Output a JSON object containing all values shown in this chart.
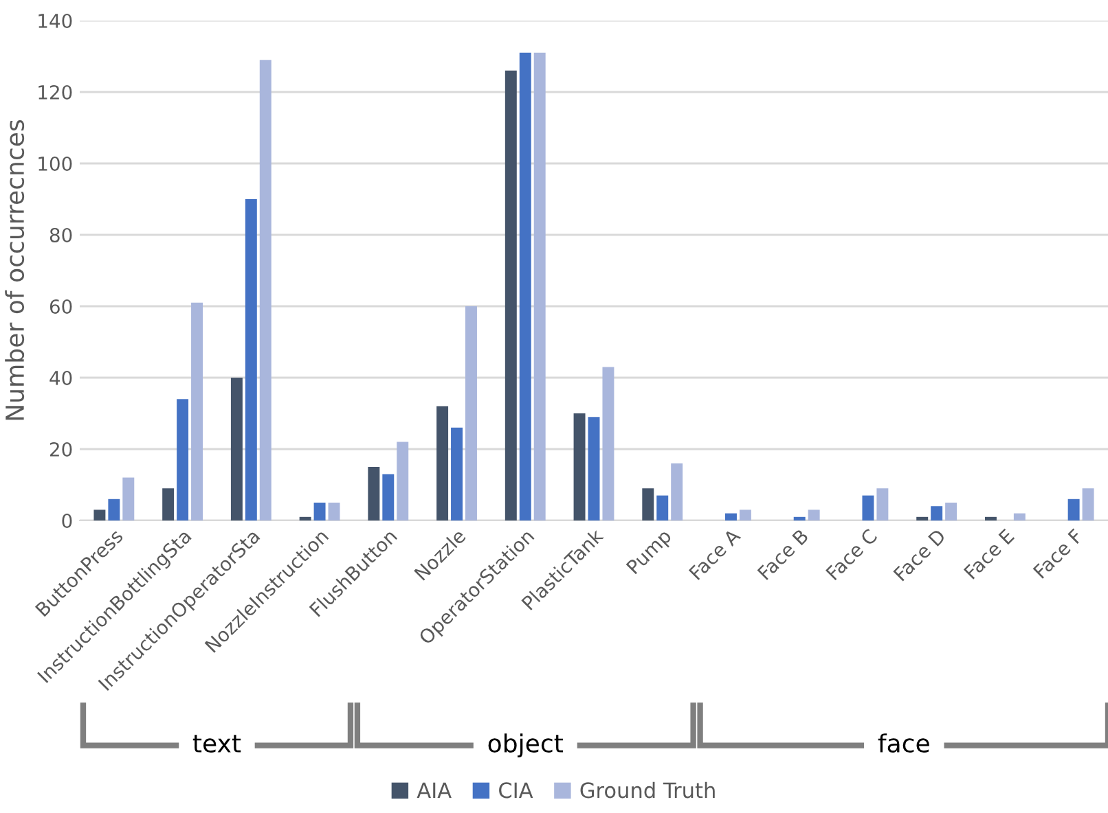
{
  "chart_data": {
    "type": "bar",
    "ylabel": "Number of occurrecnces",
    "categories": [
      "ButtonPress",
      "InstructionBottlingSta",
      "InstructionOperatorSta",
      "NozzleInstruction",
      "FlushButton",
      "Nozzle",
      "OperatorStation",
      "PlasticTank",
      "Pump",
      "Face A",
      "Face B",
      "Face C",
      "Face D",
      "Face E",
      "Face F"
    ],
    "series": [
      {
        "name": "AIA",
        "color": "#44546a",
        "values": [
          3,
          9,
          40,
          1,
          15,
          32,
          126,
          30,
          9,
          0,
          0,
          0,
          1,
          1,
          0
        ]
      },
      {
        "name": "CIA",
        "color": "#4472c4",
        "values": [
          6,
          34,
          90,
          5,
          13,
          26,
          131,
          29,
          7,
          2,
          1,
          7,
          4,
          0,
          6
        ]
      },
      {
        "name": "Ground Truth",
        "color": "#a9b6dc",
        "values": [
          12,
          61,
          129,
          5,
          22,
          60,
          131,
          43,
          16,
          3,
          3,
          9,
          5,
          2,
          9
        ]
      }
    ],
    "annotations": [
      "text",
      "object",
      "face"
    ],
    "ylim": [
      0,
      140
    ],
    "yticks": [
      0,
      20,
      40,
      60,
      80,
      100,
      120,
      140
    ],
    "grid": "y",
    "legend": "bottom"
  }
}
